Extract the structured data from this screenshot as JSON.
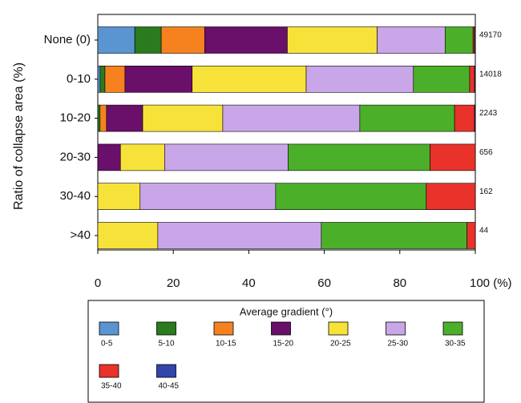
{
  "chart_data": {
    "type": "stacked_barh",
    "y_label": "Ratio of collapse area (%)",
    "categories": [
      "None (0)",
      "0-10",
      "10-20",
      "20-30",
      "30-40",
      ">40"
    ],
    "row_totals": [
      49170,
      14018,
      2243,
      656,
      162,
      44
    ],
    "xlim": [
      0,
      100
    ],
    "xticks": [
      0,
      20,
      40,
      60,
      80,
      {
        "value": 100,
        "label": "100 (%)"
      }
    ],
    "legend_title": "Average gradient (°)",
    "series": [
      {
        "name": "0-5",
        "color": "#5a95d2",
        "values": [
          9.8,
          0.6,
          0,
          0,
          0,
          0
        ]
      },
      {
        "name": "5-10",
        "color": "#2a7a1e",
        "values": [
          7,
          1.3,
          0.6,
          0,
          0,
          0
        ]
      },
      {
        "name": "10-15",
        "color": "#f5821f",
        "values": [
          11.5,
          5.3,
          1.7,
          0,
          0,
          0
        ]
      },
      {
        "name": "15-20",
        "color": "#6a0f6a",
        "values": [
          21.9,
          17.8,
          9.6,
          6,
          0,
          0
        ]
      },
      {
        "name": "20-25",
        "color": "#f7e23a",
        "values": [
          23.8,
          30.2,
          21.2,
          11.7,
          11.2,
          15.9
        ]
      },
      {
        "name": "25-30",
        "color": "#c9a6e8",
        "values": [
          18,
          28.4,
          36.3,
          32.7,
          35.9,
          43.3
        ]
      },
      {
        "name": "30-35",
        "color": "#4caf2a",
        "values": [
          7.4,
          14.9,
          25.1,
          37.6,
          39.9,
          38.6
        ]
      },
      {
        "name": "35-40",
        "color": "#e8322a",
        "values": [
          0.4,
          1.3,
          5.3,
          12,
          13,
          2.2
        ]
      },
      {
        "name": "40-45",
        "color": "#3344aa",
        "values": [
          0.2,
          0.2,
          0.2,
          0,
          0,
          0
        ]
      }
    ]
  }
}
